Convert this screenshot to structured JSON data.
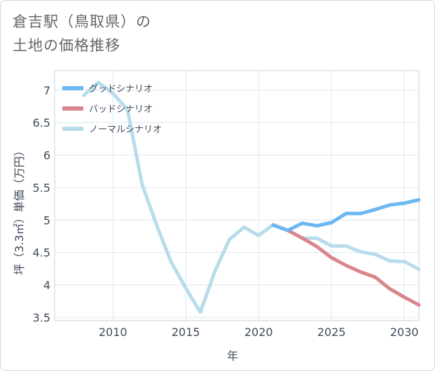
{
  "chart_data": {
    "type": "line",
    "title_line1": "倉吉駅（鳥取県）の",
    "title_line2": "土地の価格推移",
    "xlabel": "年",
    "ylabel": "坪（3.3㎡）単価（万円）",
    "xlim": [
      2006,
      2031
    ],
    "ylim": [
      3.45,
      7.3
    ],
    "x_ticks": [
      2010,
      2015,
      2020,
      2025,
      2030
    ],
    "y_ticks": [
      3.5,
      4,
      4.5,
      5,
      5.5,
      6,
      6.5,
      7
    ],
    "grid": true,
    "legend_position": "top-left",
    "series": [
      {
        "name": "グッドシナリオ",
        "color": "#6cb8f0",
        "x": [
          2021,
          2022,
          2023,
          2024,
          2025,
          2026,
          2027,
          2028,
          2029,
          2030,
          2031
        ],
        "values": [
          4.92,
          4.84,
          4.95,
          4.91,
          4.96,
          5.1,
          5.1,
          5.16,
          5.23,
          5.26,
          5.31
        ]
      },
      {
        "name": "バッドシナリオ",
        "color": "#d9868c",
        "x": [
          2021,
          2022,
          2023,
          2024,
          2025,
          2026,
          2027,
          2028,
          2029,
          2030,
          2031
        ],
        "values": [
          4.92,
          4.84,
          4.72,
          4.59,
          4.42,
          4.3,
          4.2,
          4.12,
          3.94,
          3.81,
          3.69
        ]
      },
      {
        "name": "ノーマルシナリオ",
        "color": "#b8dcec",
        "x": [
          2008,
          2009,
          2010,
          2011,
          2012,
          2013,
          2014,
          2015,
          2016,
          2017,
          2018,
          2019,
          2020,
          2021,
          2022,
          2023,
          2024,
          2025,
          2026,
          2027,
          2028,
          2029,
          2030,
          2031
        ],
        "values": [
          6.92,
          7.12,
          6.95,
          6.7,
          5.55,
          4.92,
          4.35,
          3.95,
          3.58,
          4.21,
          4.7,
          4.89,
          4.76,
          4.93,
          4.84,
          4.72,
          4.72,
          4.6,
          4.6,
          4.51,
          4.47,
          4.37,
          4.36,
          4.24
        ]
      }
    ]
  }
}
